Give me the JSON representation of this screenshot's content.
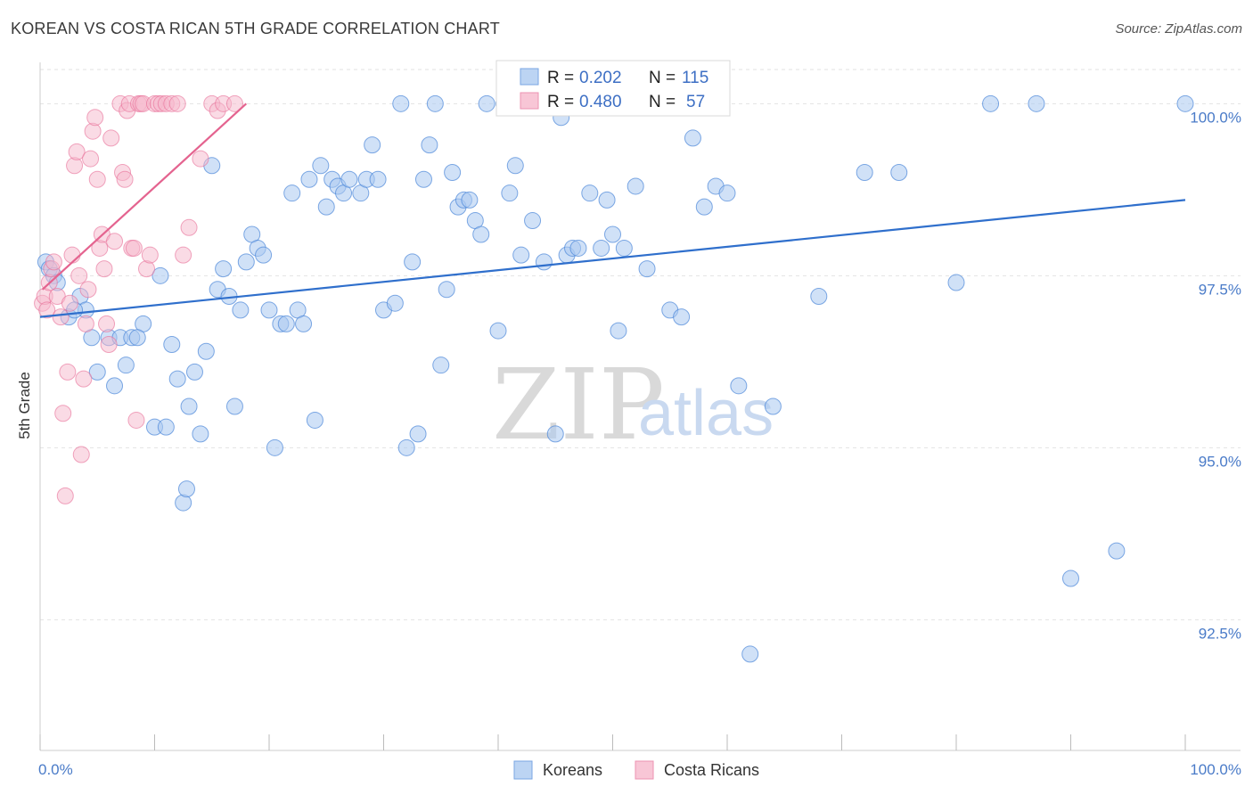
{
  "title": "KOREAN VS COSTA RICAN 5TH GRADE CORRELATION CHART",
  "source": "Source: ZipAtlas.com",
  "watermark": {
    "part1": "ZIP",
    "part2": "atlas"
  },
  "colors": {
    "blue": "#4a86d8",
    "blue_fill": "#a9c8f0",
    "pink": "#e86d96",
    "pink_fill": "#f5b8cc",
    "grid": "#e2e2e2"
  },
  "chart_data": {
    "type": "scatter",
    "title": "KOREAN VS COSTA RICAN 5TH GRADE CORRELATION CHART",
    "xlabel": "",
    "ylabel": "5th Grade",
    "xlim": [
      0,
      100
    ],
    "ylim": [
      90.6,
      100.6
    ],
    "x_tick_labels": [
      "0.0%",
      "100.0%"
    ],
    "y_ticks": [
      92.5,
      95.0,
      97.5,
      100.0
    ],
    "y_tick_labels": [
      "92.5%",
      "95.0%",
      "97.5%",
      "100.0%"
    ],
    "grid": true,
    "legend_position": "bottom-center",
    "stats": [
      {
        "series": "Koreans",
        "r_label": "R =",
        "r": "0.202",
        "n_label": "N =",
        "n": "115"
      },
      {
        "series": "Costa Ricans",
        "r_label": "R =",
        "r": "0.480",
        "n_label": "N =",
        "n": "57"
      }
    ],
    "series": [
      {
        "name": "Koreans",
        "color": "#4a86d8",
        "trend": {
          "x": [
            0,
            100
          ],
          "y": [
            96.9,
            98.6
          ]
        },
        "points": [
          [
            0.5,
            97.7
          ],
          [
            0.8,
            97.6
          ],
          [
            1.2,
            97.5
          ],
          [
            1.5,
            97.4
          ],
          [
            2.5,
            96.9
          ],
          [
            3.5,
            97.2
          ],
          [
            4,
            97.0
          ],
          [
            3,
            97.0
          ],
          [
            4.5,
            96.6
          ],
          [
            6,
            96.6
          ],
          [
            5,
            96.1
          ],
          [
            6.5,
            95.9
          ],
          [
            7,
            96.6
          ],
          [
            8,
            96.6
          ],
          [
            7.5,
            96.2
          ],
          [
            9,
            96.8
          ],
          [
            8.5,
            96.6
          ],
          [
            10,
            95.3
          ],
          [
            10.5,
            97.5
          ],
          [
            11,
            95.3
          ],
          [
            11.5,
            96.5
          ],
          [
            12,
            96.0
          ],
          [
            12.5,
            94.2
          ],
          [
            12.8,
            94.4
          ],
          [
            13,
            95.6
          ],
          [
            13.5,
            96.1
          ],
          [
            14,
            95.2
          ],
          [
            14.5,
            96.4
          ],
          [
            15,
            99.1
          ],
          [
            15.5,
            97.3
          ],
          [
            16,
            97.6
          ],
          [
            16.5,
            97.2
          ],
          [
            17,
            95.6
          ],
          [
            17.5,
            97.0
          ],
          [
            18,
            97.7
          ],
          [
            18.5,
            98.1
          ],
          [
            19,
            97.9
          ],
          [
            19.5,
            97.8
          ],
          [
            20,
            97.0
          ],
          [
            20.5,
            95.0
          ],
          [
            21,
            96.8
          ],
          [
            21.5,
            96.8
          ],
          [
            22,
            98.7
          ],
          [
            22.5,
            97.0
          ],
          [
            23,
            96.8
          ],
          [
            23.5,
            98.9
          ],
          [
            24,
            95.4
          ],
          [
            24.5,
            99.1
          ],
          [
            25,
            98.5
          ],
          [
            25.5,
            98.9
          ],
          [
            26,
            98.8
          ],
          [
            26.5,
            98.7
          ],
          [
            27,
            98.9
          ],
          [
            28,
            98.7
          ],
          [
            28.5,
            98.9
          ],
          [
            29,
            99.4
          ],
          [
            29.5,
            98.9
          ],
          [
            30,
            97.0
          ],
          [
            31,
            97.1
          ],
          [
            31.5,
            100.0
          ],
          [
            32,
            95.0
          ],
          [
            32.5,
            97.7
          ],
          [
            33,
            95.2
          ],
          [
            33.5,
            98.9
          ],
          [
            34,
            99.4
          ],
          [
            34.5,
            100.0
          ],
          [
            35,
            96.2
          ],
          [
            35.5,
            97.3
          ],
          [
            36,
            99.0
          ],
          [
            36.5,
            98.5
          ],
          [
            37,
            98.6
          ],
          [
            37.5,
            98.6
          ],
          [
            38,
            98.3
          ],
          [
            38.5,
            98.1
          ],
          [
            39,
            100.0
          ],
          [
            40,
            96.7
          ],
          [
            40.5,
            100.0
          ],
          [
            41,
            98.7
          ],
          [
            41.5,
            99.1
          ],
          [
            42,
            97.8
          ],
          [
            43,
            98.3
          ],
          [
            44,
            97.7
          ],
          [
            45,
            95.2
          ],
          [
            45.5,
            99.8
          ],
          [
            46,
            97.8
          ],
          [
            46.5,
            97.9
          ],
          [
            47,
            97.9
          ],
          [
            47.5,
            100.0
          ],
          [
            48,
            98.7
          ],
          [
            49,
            97.9
          ],
          [
            49.5,
            98.6
          ],
          [
            50,
            98.1
          ],
          [
            50.5,
            96.7
          ],
          [
            51,
            97.9
          ],
          [
            52,
            98.8
          ],
          [
            53,
            97.6
          ],
          [
            54,
            100.0
          ],
          [
            55,
            97.0
          ],
          [
            56,
            96.9
          ],
          [
            57,
            99.5
          ],
          [
            58,
            98.5
          ],
          [
            59,
            98.8
          ],
          [
            60,
            98.7
          ],
          [
            61,
            95.9
          ],
          [
            62,
            92.0
          ],
          [
            64,
            95.6
          ],
          [
            68,
            97.2
          ],
          [
            72,
            99.0
          ],
          [
            75,
            99.0
          ],
          [
            80,
            97.4
          ],
          [
            83,
            100.0
          ],
          [
            87,
            100.0
          ],
          [
            90,
            93.1
          ],
          [
            94,
            93.5
          ],
          [
            100,
            100.0
          ]
        ]
      },
      {
        "name": "Costa Ricans",
        "color": "#e86d96",
        "trend": {
          "x": [
            0.2,
            18
          ],
          "y": [
            97.3,
            100.0
          ]
        },
        "points": [
          [
            0.2,
            97.1
          ],
          [
            0.4,
            97.2
          ],
          [
            0.6,
            97.0
          ],
          [
            0.8,
            97.4
          ],
          [
            1,
            97.6
          ],
          [
            1.2,
            97.7
          ],
          [
            1.5,
            97.2
          ],
          [
            1.8,
            96.9
          ],
          [
            2,
            95.5
          ],
          [
            2.2,
            94.3
          ],
          [
            2.4,
            96.1
          ],
          [
            2.6,
            97.1
          ],
          [
            2.8,
            97.8
          ],
          [
            3,
            99.1
          ],
          [
            3.2,
            99.3
          ],
          [
            3.4,
            97.5
          ],
          [
            3.6,
            94.9
          ],
          [
            3.8,
            96.0
          ],
          [
            4,
            96.8
          ],
          [
            4.2,
            97.3
          ],
          [
            4.4,
            99.2
          ],
          [
            4.6,
            99.6
          ],
          [
            4.8,
            99.8
          ],
          [
            5,
            98.9
          ],
          [
            5.2,
            97.9
          ],
          [
            5.4,
            98.1
          ],
          [
            5.6,
            97.6
          ],
          [
            5.8,
            96.8
          ],
          [
            6,
            96.5
          ],
          [
            6.2,
            99.5
          ],
          [
            6.5,
            98.0
          ],
          [
            7,
            100.0
          ],
          [
            7.2,
            99.0
          ],
          [
            7.4,
            98.9
          ],
          [
            7.6,
            99.9
          ],
          [
            7.8,
            100.0
          ],
          [
            8,
            97.9
          ],
          [
            8.2,
            97.9
          ],
          [
            8.4,
            95.4
          ],
          [
            8.6,
            100.0
          ],
          [
            8.8,
            100.0
          ],
          [
            9,
            100.0
          ],
          [
            9.3,
            97.6
          ],
          [
            9.6,
            97.8
          ],
          [
            10,
            100.0
          ],
          [
            10.3,
            100.0
          ],
          [
            10.6,
            100.0
          ],
          [
            11,
            100.0
          ],
          [
            11.5,
            100.0
          ],
          [
            12,
            100.0
          ],
          [
            12.5,
            97.8
          ],
          [
            13,
            98.2
          ],
          [
            14,
            99.2
          ],
          [
            15,
            100.0
          ],
          [
            15.5,
            99.9
          ],
          [
            16,
            100.0
          ],
          [
            17,
            100.0
          ]
        ]
      }
    ]
  }
}
